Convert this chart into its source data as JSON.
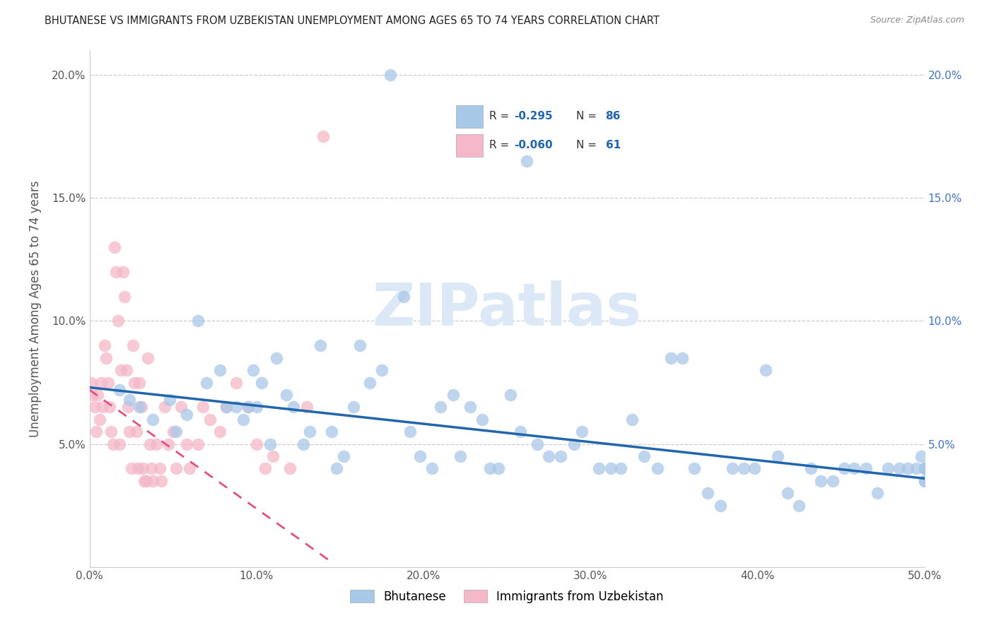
{
  "title": "BHUTANESE VS IMMIGRANTS FROM UZBEKISTAN UNEMPLOYMENT AMONG AGES 65 TO 74 YEARS CORRELATION CHART",
  "source": "Source: ZipAtlas.com",
  "ylabel": "Unemployment Among Ages 65 to 74 years",
  "xlim": [
    0.0,
    0.5
  ],
  "ylim": [
    0.0,
    0.21
  ],
  "xticks": [
    0.0,
    0.1,
    0.2,
    0.3,
    0.4,
    0.5
  ],
  "xticklabels": [
    "0.0%",
    "10.0%",
    "20.0%",
    "30.0%",
    "40.0%",
    "50.0%"
  ],
  "yticks": [
    0.0,
    0.05,
    0.1,
    0.15,
    0.2
  ],
  "yticklabels_left": [
    "",
    "5.0%",
    "10.0%",
    "15.0%",
    "20.0%"
  ],
  "yticklabels_right": [
    "",
    "5.0%",
    "10.0%",
    "15.0%",
    "20.0%"
  ],
  "blue_color": "#a8c8e8",
  "pink_color": "#f4b8c8",
  "blue_line_color": "#2166ac",
  "pink_line_color": "#e05080",
  "watermark_color": "#dce8f5",
  "blue_scatter_x": [
    0.018,
    0.024,
    0.03,
    0.038,
    0.048,
    0.052,
    0.058,
    0.065,
    0.07,
    0.078,
    0.082,
    0.088,
    0.092,
    0.095,
    0.098,
    0.1,
    0.103,
    0.108,
    0.112,
    0.118,
    0.122,
    0.128,
    0.132,
    0.138,
    0.145,
    0.148,
    0.152,
    0.158,
    0.162,
    0.168,
    0.175,
    0.18,
    0.188,
    0.192,
    0.198,
    0.205,
    0.21,
    0.218,
    0.222,
    0.228,
    0.235,
    0.24,
    0.245,
    0.252,
    0.258,
    0.262,
    0.268,
    0.275,
    0.282,
    0.29,
    0.295,
    0.305,
    0.312,
    0.318,
    0.325,
    0.332,
    0.34,
    0.348,
    0.355,
    0.362,
    0.37,
    0.378,
    0.385,
    0.392,
    0.398,
    0.405,
    0.412,
    0.418,
    0.425,
    0.432,
    0.438,
    0.445,
    0.452,
    0.458,
    0.465,
    0.472,
    0.478,
    0.485,
    0.49,
    0.495,
    0.498,
    0.5,
    0.5,
    0.5,
    0.5,
    0.5
  ],
  "blue_scatter_y": [
    0.072,
    0.068,
    0.065,
    0.06,
    0.068,
    0.055,
    0.062,
    0.1,
    0.075,
    0.08,
    0.065,
    0.065,
    0.06,
    0.065,
    0.08,
    0.065,
    0.075,
    0.05,
    0.085,
    0.07,
    0.065,
    0.05,
    0.055,
    0.09,
    0.055,
    0.04,
    0.045,
    0.065,
    0.09,
    0.075,
    0.08,
    0.2,
    0.11,
    0.055,
    0.045,
    0.04,
    0.065,
    0.07,
    0.045,
    0.065,
    0.06,
    0.04,
    0.04,
    0.07,
    0.055,
    0.165,
    0.05,
    0.045,
    0.045,
    0.05,
    0.055,
    0.04,
    0.04,
    0.04,
    0.06,
    0.045,
    0.04,
    0.085,
    0.085,
    0.04,
    0.03,
    0.025,
    0.04,
    0.04,
    0.04,
    0.08,
    0.045,
    0.03,
    0.025,
    0.04,
    0.035,
    0.035,
    0.04,
    0.04,
    0.04,
    0.03,
    0.04,
    0.04,
    0.04,
    0.04,
    0.045,
    0.04,
    0.035,
    0.035,
    0.04,
    0.04
  ],
  "pink_scatter_x": [
    0.001,
    0.002,
    0.003,
    0.004,
    0.005,
    0.006,
    0.007,
    0.008,
    0.009,
    0.01,
    0.011,
    0.012,
    0.013,
    0.014,
    0.015,
    0.016,
    0.017,
    0.018,
    0.019,
    0.02,
    0.021,
    0.022,
    0.023,
    0.024,
    0.025,
    0.026,
    0.027,
    0.028,
    0.029,
    0.03,
    0.031,
    0.032,
    0.033,
    0.034,
    0.035,
    0.036,
    0.037,
    0.038,
    0.04,
    0.042,
    0.043,
    0.045,
    0.047,
    0.05,
    0.052,
    0.055,
    0.058,
    0.06,
    0.065,
    0.068,
    0.072,
    0.078,
    0.082,
    0.088,
    0.095,
    0.1,
    0.105,
    0.11,
    0.12,
    0.13,
    0.14
  ],
  "pink_scatter_y": [
    0.075,
    0.07,
    0.065,
    0.055,
    0.07,
    0.06,
    0.075,
    0.065,
    0.09,
    0.085,
    0.075,
    0.065,
    0.055,
    0.05,
    0.13,
    0.12,
    0.1,
    0.05,
    0.08,
    0.12,
    0.11,
    0.08,
    0.065,
    0.055,
    0.04,
    0.09,
    0.075,
    0.055,
    0.04,
    0.075,
    0.065,
    0.04,
    0.035,
    0.035,
    0.085,
    0.05,
    0.04,
    0.035,
    0.05,
    0.04,
    0.035,
    0.065,
    0.05,
    0.055,
    0.04,
    0.065,
    0.05,
    0.04,
    0.05,
    0.065,
    0.06,
    0.055,
    0.065,
    0.075,
    0.065,
    0.05,
    0.04,
    0.045,
    0.04,
    0.065,
    0.175
  ],
  "blue_line_x0": 0.0,
  "blue_line_x1": 0.5,
  "blue_line_y0": 0.073,
  "blue_line_y1": 0.036,
  "pink_line_x0": 0.0,
  "pink_line_x1": 0.145,
  "pink_line_y0": 0.072,
  "pink_line_y1": 0.002
}
